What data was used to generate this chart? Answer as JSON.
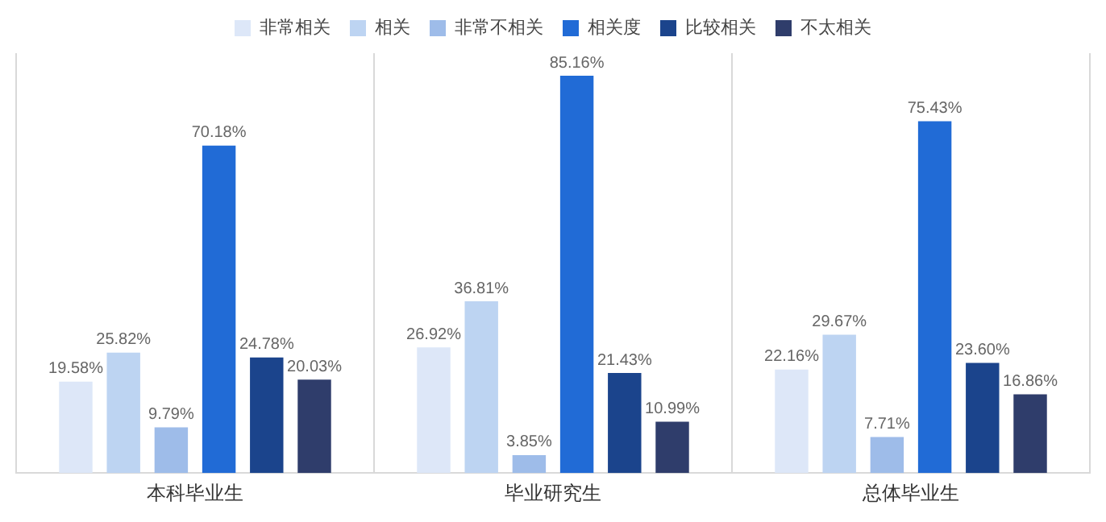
{
  "chart_data": {
    "type": "bar",
    "categories": [
      "本科毕业生",
      "毕业研究生",
      "总体毕业生"
    ],
    "series": [
      {
        "name": "非常相关",
        "color": "#dde7f8",
        "values": [
          19.58,
          26.92,
          22.16
        ],
        "value_labels": [
          "19.58%",
          "26.92%",
          "22.16%"
        ]
      },
      {
        "name": "相关",
        "color": "#bdd4f2",
        "values": [
          25.82,
          36.81,
          29.67
        ],
        "value_labels": [
          "25.82%",
          "36.81%",
          "29.67%"
        ]
      },
      {
        "name": "非常不相关",
        "color": "#9ebce9",
        "values": [
          9.79,
          3.85,
          7.71
        ],
        "value_labels": [
          "9.79%",
          "3.85%",
          "7.71%"
        ]
      },
      {
        "name": "相关度",
        "color": "#216bd6",
        "values": [
          70.18,
          85.16,
          75.43
        ],
        "value_labels": [
          "70.18%",
          "85.16%",
          "75.43%"
        ]
      },
      {
        "name": "比较相关",
        "color": "#1b448c",
        "values": [
          24.78,
          21.43,
          23.6
        ],
        "value_labels": [
          "24.78%",
          "21.43%",
          "23.60%"
        ]
      },
      {
        "name": "不太相关",
        "color": "#2f3d6b",
        "values": [
          20.03,
          10.99,
          16.86
        ],
        "value_labels": [
          "20.03%",
          "10.99%",
          "16.86%"
        ]
      }
    ],
    "legend": "top",
    "grid": "x",
    "tick_labels": "x"
  }
}
